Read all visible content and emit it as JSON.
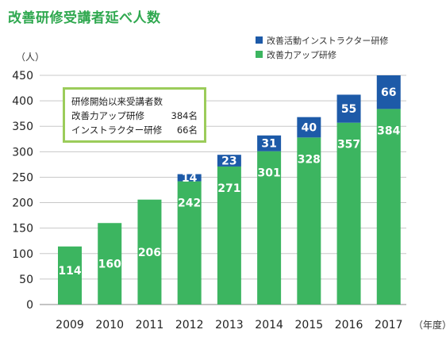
{
  "page_title": "改善研修受講者延べ人数",
  "note": {
    "heading": "研修開始以来受講者数",
    "rows": [
      {
        "label": "改善力アップ研修",
        "value": "384名"
      },
      {
        "label": "インストラクター研修",
        "value": "66名"
      }
    ]
  },
  "colors": {
    "title": "#2fa84f",
    "green_series": "#3cb560",
    "blue_series": "#1d5aa8",
    "note_border": "#9bcc5a",
    "grid": "#c8c8c8"
  },
  "chart_data": {
    "type": "bar",
    "stacked": true,
    "title": "改善研修受講者延べ人数",
    "y_unit_label": "（人）",
    "x_unit_label": "（年度）",
    "ylim": [
      0,
      450
    ],
    "yticks": [
      0,
      50,
      100,
      150,
      200,
      250,
      300,
      350,
      400,
      450
    ],
    "grid": true,
    "legend_position": "top-right",
    "categories": [
      "2009",
      "2010",
      "2011",
      "2012",
      "2013",
      "2014",
      "2015",
      "2016",
      "2017"
    ],
    "series": [
      {
        "name": "改善力アップ研修",
        "color": "#3cb560",
        "values": [
          114,
          160,
          206,
          242,
          271,
          301,
          328,
          357,
          384
        ]
      },
      {
        "name": "改善活動インストラクター研修",
        "color": "#1d5aa8",
        "values": [
          0,
          0,
          0,
          14,
          23,
          31,
          40,
          55,
          66
        ]
      }
    ]
  }
}
